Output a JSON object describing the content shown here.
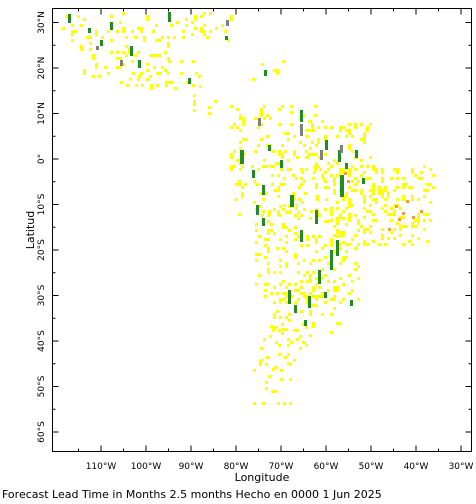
{
  "map": {
    "xlabel": "Longitude",
    "ylabel": "Latitud",
    "footer": "Forecast Lead Time in Months 2.5 months Hecho en 0000 1 Jun 2025",
    "lon_ticks": [
      {
        "value": -110,
        "label": "110°W"
      },
      {
        "value": -100,
        "label": "100°W"
      },
      {
        "value": -90,
        "label": "90°W"
      },
      {
        "value": -80,
        "label": "80°W"
      },
      {
        "value": -70,
        "label": "70°W"
      },
      {
        "value": -60,
        "label": "60°W"
      },
      {
        "value": -50,
        "label": "50°W"
      },
      {
        "value": -40,
        "label": "40°W"
      },
      {
        "value": -30,
        "label": "30°W"
      }
    ],
    "lat_ticks": [
      {
        "value": 30,
        "label": "30°N"
      },
      {
        "value": 20,
        "label": "20°N"
      },
      {
        "value": 10,
        "label": "10°N"
      },
      {
        "value": 0,
        "label": "0°"
      },
      {
        "value": -10,
        "label": "10°S"
      },
      {
        "value": -20,
        "label": "20°S"
      },
      {
        "value": -30,
        "label": "30°S"
      },
      {
        "value": -40,
        "label": "40°S"
      },
      {
        "value": -50,
        "label": "50°S"
      },
      {
        "value": -60,
        "label": "60°S"
      }
    ],
    "lon_range": [
      -118,
      -27
    ],
    "lat_range": [
      -65,
      33
    ],
    "colors": {
      "yellow": "#ffff00",
      "green": "#228b22",
      "gray": "#808080",
      "orange": "#ff9933"
    }
  }
}
